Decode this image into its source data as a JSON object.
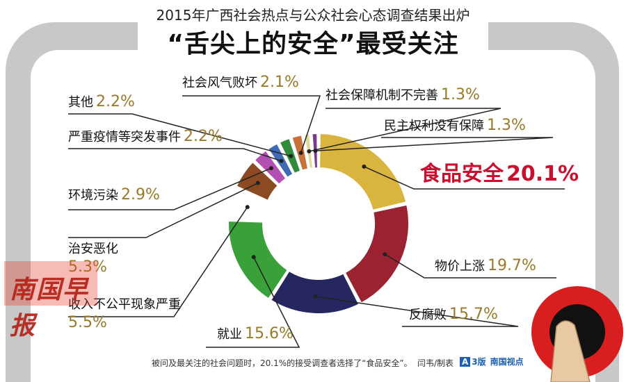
{
  "header": {
    "subtitle": "2015年广西社会热点与公众社会心态调查结果出炉",
    "title": "“舌尖上的安全”最受关注"
  },
  "chart_data": {
    "type": "pie",
    "style": "donut",
    "start": "top",
    "direction": "clockwise",
    "slices": [
      {
        "label": "食品安全",
        "value": 20.1,
        "display": "20.1%",
        "color": "#d9b43e"
      },
      {
        "label": "物价上涨",
        "value": 19.7,
        "display": "19.7%",
        "color": "#9b2231"
      },
      {
        "label": "反腐败",
        "value": 15.7,
        "display": "15.7%",
        "color": "#262660"
      },
      {
        "label": "就业",
        "value": 15.6,
        "display": "15.6%",
        "color": "#3aa039"
      },
      {
        "label": "收入不公平现象严重",
        "value": 5.5,
        "display": "5.5%",
        "color": "#ffffff"
      },
      {
        "label": "治安恶化",
        "value": 5.3,
        "display": "5.3%",
        "color": "#8b4a22"
      },
      {
        "label": "环境污染",
        "value": 2.9,
        "display": "2.9%",
        "color": "#b34fb0"
      },
      {
        "label": "严重疫情等突发事件",
        "value": 2.2,
        "display": "2.2%",
        "color": "#3e6bb4"
      },
      {
        "label": "其他",
        "value": 2.2,
        "display": "2.2%",
        "color": "#2f8a3a"
      },
      {
        "label": "社会风气败坏",
        "value": 2.1,
        "display": "2.1%",
        "color": "#c9713a"
      },
      {
        "label": "社会保障机制不完善",
        "value": 1.3,
        "display": "1.3%",
        "color": "#dfd99b"
      },
      {
        "label": "民主权利没有保障",
        "value": 1.3,
        "display": "1.3%",
        "color": "#7a3b8c"
      }
    ]
  },
  "footer": {
    "note": "被问及最关注的社会问题时，20.1%的接受调查者选择了“食品安全”。",
    "author": "闫韦/制表",
    "page_box": "A",
    "page_num": "3版",
    "column": "南国视点"
  },
  "watermark": "南国早报",
  "colors": {
    "frame": "#c8c8c8",
    "highlight": "#c8102e",
    "percent": "#9a7a28",
    "leader": "#222222"
  }
}
